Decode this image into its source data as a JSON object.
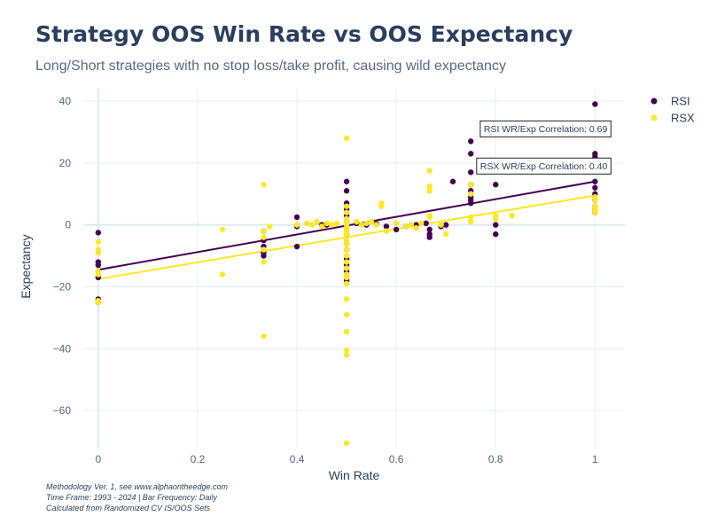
{
  "title": "Strategy OOS Win Rate vs OOS Expectancy",
  "subtitle": "Long/Short strategies with no stop loss/take profit, causing wild expectancy",
  "footnotes": [
    "Methodology Ver. 1, see www.alphaontheedge.com",
    "Time Frame: 1993 - 2024 | Bar Frequency: Daily",
    "Calculated from Randomized CV IS/OOS Sets"
  ],
  "colors": {
    "RSI": "#440154",
    "RSX": "#fde725",
    "grid": "#e5eef3",
    "zeroline": "#dcebef"
  },
  "chart_data": {
    "type": "scatter",
    "xlabel": "Win Rate",
    "ylabel": "Expectancy",
    "xlim": [
      -0.03,
      1.06
    ],
    "ylim": [
      -72,
      44
    ],
    "xticks": [
      0,
      0.2,
      0.4,
      0.6,
      0.8,
      1
    ],
    "xtick_labels": [
      "0",
      "0.2",
      "0.4",
      "0.6",
      "0.8",
      "1"
    ],
    "yticks": [
      40,
      20,
      0,
      -20,
      -40,
      -60
    ],
    "ytick_labels": [
      "40",
      "20",
      "0",
      "−20",
      "−40",
      "−60"
    ],
    "grid": true,
    "legend_position": "top-right",
    "series": [
      {
        "name": "RSI",
        "color": "#440154",
        "x": [
          0,
          0,
          0,
          0,
          0,
          0,
          0.333,
          0.333,
          0.333,
          0.333,
          0.333,
          0.4,
          0.4,
          0.4,
          0.45,
          0.46,
          0.5,
          0.5,
          0.5,
          0.5,
          0.5,
          0.5,
          0.5,
          0.5,
          0.5,
          0.5,
          0.5,
          0.5,
          0.5,
          0.5,
          0.5,
          0.5,
          0.52,
          0.54,
          0.56,
          0.58,
          0.6,
          0.62,
          0.64,
          0.66,
          0.667,
          0.667,
          0.667,
          0.69,
          0.7,
          0.714,
          0.75,
          0.75,
          0.75,
          0.75,
          0.75,
          0.75,
          0.75,
          0.75,
          0.8,
          0.8,
          0.8,
          1,
          1,
          1,
          1,
          1,
          1,
          1,
          1,
          1,
          1
        ],
        "y": [
          -2.5,
          -12,
          -13,
          -17,
          -24,
          -25,
          -2,
          -5,
          -7,
          -9,
          -10,
          2.5,
          -0.5,
          -7,
          0,
          0,
          14,
          11,
          7,
          5,
          3,
          1,
          0,
          -1,
          -3,
          -6,
          -8,
          -11,
          -13,
          -15,
          -17,
          -18,
          0.5,
          0,
          0.3,
          -0.5,
          -1.5,
          -0.5,
          0,
          0.5,
          -1.5,
          -3,
          -4,
          -0.5,
          0,
          14,
          27,
          23,
          17,
          13,
          11,
          9,
          8,
          7,
          13,
          0,
          -3,
          39,
          23,
          22,
          14,
          12,
          10,
          8,
          6,
          5,
          4
        ]
      },
      {
        "name": "RSX",
        "color": "#fde725",
        "x": [
          0,
          0,
          0,
          0,
          0,
          0,
          0,
          0.25,
          0.25,
          0.333,
          0.333,
          0.333,
          0.333,
          0.333,
          0.333,
          0.345,
          0.4,
          0.42,
          0.43,
          0.44,
          0.45,
          0.46,
          0.47,
          0.48,
          0.5,
          0.5,
          0.5,
          0.5,
          0.5,
          0.5,
          0.5,
          0.5,
          0.5,
          0.5,
          0.5,
          0.5,
          0.5,
          0.5,
          0.5,
          0.5,
          0.5,
          0.5,
          0.5,
          0.5,
          0.5,
          0.5,
          0.5,
          0.5,
          0.5,
          0.52,
          0.53,
          0.54,
          0.55,
          0.56,
          0.57,
          0.57,
          0.58,
          0.6,
          0.62,
          0.63,
          0.64,
          0.65,
          0.667,
          0.667,
          0.667,
          0.667,
          0.667,
          0.69,
          0.7,
          0.75,
          0.75,
          0.75,
          0.75,
          0.8,
          0.8,
          0.833,
          1,
          1,
          1,
          1,
          1
        ],
        "y": [
          -5.5,
          -8,
          -9,
          -15,
          -16,
          -24.5,
          -25,
          -1.5,
          -16,
          13,
          -2,
          -4,
          -8,
          -12,
          -36,
          -0.5,
          0,
          0.5,
          0,
          1,
          -0.5,
          0.5,
          0,
          0.5,
          28,
          6,
          4,
          2,
          1,
          0,
          -1,
          -2,
          -3,
          -5,
          -6,
          -8,
          -10,
          -12,
          -14,
          -16,
          -17,
          -19,
          -24,
          -29,
          -34.5,
          -40.5,
          -42,
          -70.5,
          0.5,
          1,
          0,
          0.5,
          1,
          0,
          7,
          6,
          -2,
          0.5,
          -0.5,
          0,
          -1,
          0.5,
          17.5,
          12.5,
          11,
          3,
          2.5,
          0,
          -3,
          13,
          10,
          2.5,
          1,
          3,
          2,
          3,
          9,
          8,
          6,
          5,
          4
        ]
      }
    ],
    "trendlines": [
      {
        "name": "RSI",
        "x": [
          0,
          1
        ],
        "y": [
          -14.5,
          14
        ],
        "color": "#440154"
      },
      {
        "name": "RSX",
        "x": [
          0,
          1
        ],
        "y": [
          -17.5,
          9.5
        ],
        "color": "#fde725"
      }
    ],
    "annotations": [
      {
        "text": "RSI WR/Exp Correlation: 0.69",
        "x": 1,
        "y": 31,
        "series": "RSI"
      },
      {
        "text": "RSX WR/Exp Correlation: 0.40",
        "x": 1,
        "y": 19,
        "series": "RSX"
      }
    ]
  }
}
